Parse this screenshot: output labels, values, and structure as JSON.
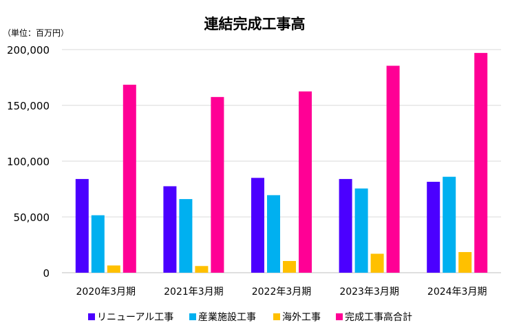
{
  "chart_data": {
    "type": "bar",
    "title": "連結完成工事高",
    "unit_label": "（単位：百万円）",
    "xlabel": "",
    "ylabel": "",
    "categories": [
      "2020年3月期",
      "2021年3月期",
      "2022年3月期",
      "2023年3月期",
      "2024年3月期"
    ],
    "ylim": [
      0,
      200000
    ],
    "yticks": [
      0,
      50000,
      100000,
      150000,
      200000
    ],
    "ytick_labels": [
      "0",
      "50,000",
      "100,000",
      "150,000",
      "200,000"
    ],
    "grid": true,
    "legend_position": "bottom",
    "series": [
      {
        "name": "リニューアル工事",
        "color": "#4B00FF",
        "values": [
          84000,
          77500,
          85000,
          84000,
          81500
        ]
      },
      {
        "name": "産業施設工事",
        "color": "#00B0F0",
        "values": [
          51500,
          66000,
          69500,
          75500,
          86000
        ]
      },
      {
        "name": "海外工事",
        "color": "#FFC000",
        "values": [
          6500,
          6000,
          10500,
          17000,
          18500
        ]
      },
      {
        "name": "完成工事高合計",
        "color": "#FF0095",
        "values": [
          168500,
          157500,
          162500,
          185500,
          197000
        ]
      }
    ]
  }
}
